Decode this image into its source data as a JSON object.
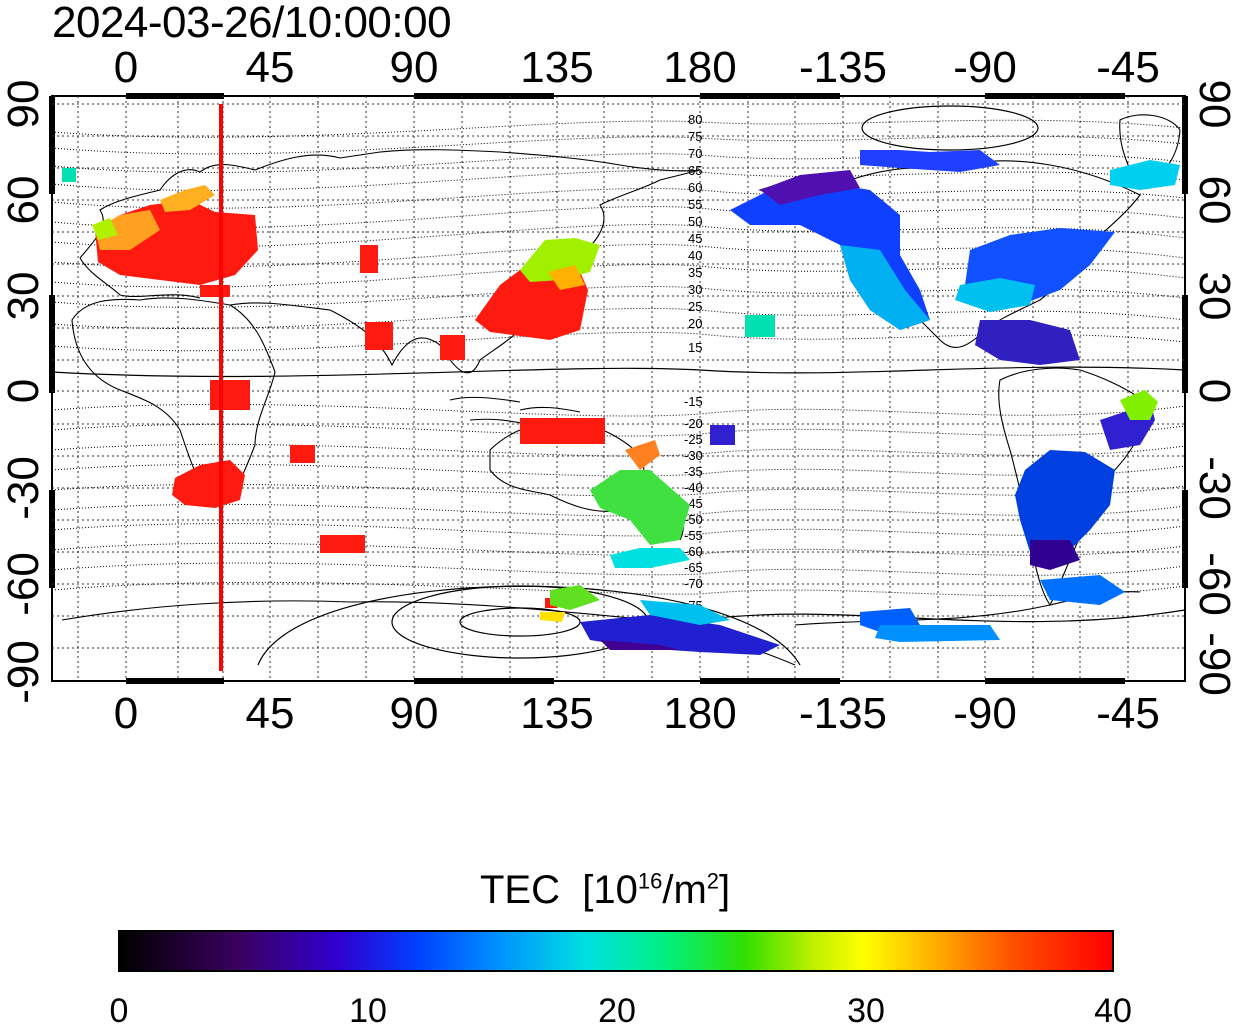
{
  "title": "2024-03-26/10:00:00",
  "x_axis_top": [
    "0",
    "45",
    "90",
    "135",
    "180",
    "-135",
    "-90",
    "-45"
  ],
  "x_axis_bottom": [
    "0",
    "45",
    "90",
    "135",
    "180",
    "-135",
    "-90",
    "-45"
  ],
  "y_axis_left": [
    "90",
    "60",
    "30",
    "0",
    "-30",
    "-60",
    "-90"
  ],
  "y_axis_right": [
    "90",
    "60",
    "30",
    "0",
    "-30",
    "-60",
    "-90"
  ],
  "contour_labels_north": [
    "80",
    "75",
    "70",
    "65",
    "60",
    "55",
    "50",
    "45",
    "40",
    "35",
    "30",
    "25",
    "20",
    "15"
  ],
  "contour_labels_south": [
    "-15",
    "-20",
    "-25",
    "-30",
    "-35",
    "-40",
    "-45",
    "-50",
    "-55",
    "-60",
    "-65",
    "-70",
    "-75"
  ],
  "colorbar": {
    "title_main": "TEC",
    "title_unit_prefix": "[10",
    "title_unit_exp": "16",
    "title_unit_mid": "/m",
    "title_unit_exp2": "2",
    "title_unit_suffix": "]",
    "ticks": [
      "0",
      "10",
      "20",
      "30",
      "40"
    ],
    "min": 0,
    "max": 40
  },
  "colors": {
    "marker_line": "#ff0000",
    "high_tec": "#ff1a1a",
    "low_tec": "#3010c0"
  }
}
